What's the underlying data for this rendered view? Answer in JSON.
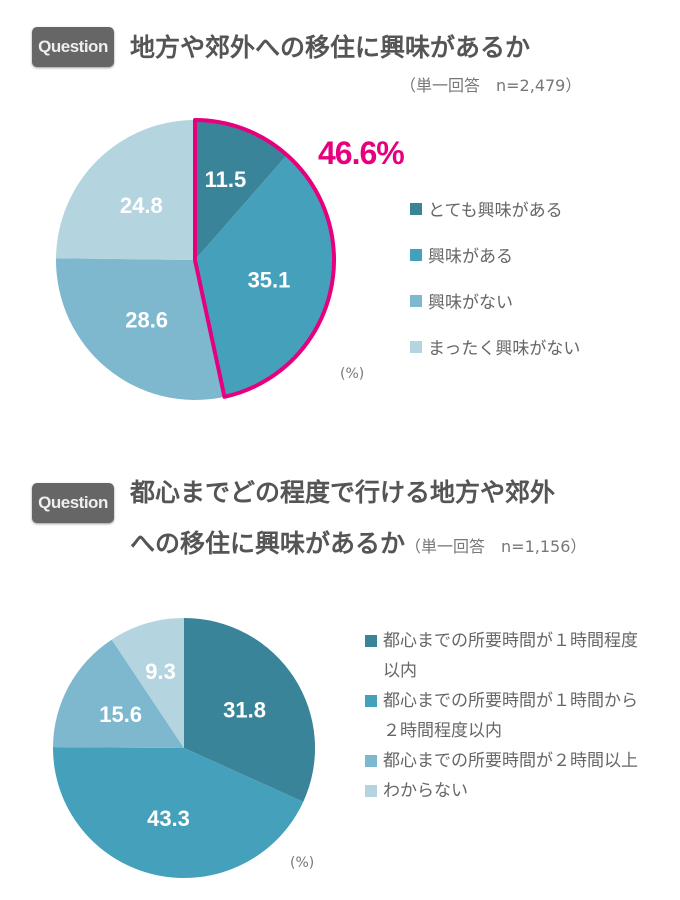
{
  "colors": {
    "c1": "#3a8499",
    "c2": "#45a0bb",
    "c3": "#7db8cf",
    "c4": "#b4d4e0",
    "highlight": "#e6007e"
  },
  "chart_data": [
    {
      "type": "pie",
      "badge": "Question",
      "title": "地方や郊外への移住に興味があるか",
      "note": "（単一回答　n=2,479）",
      "unit": "(%)",
      "highlight_label": "46.6%",
      "categories": [
        "とても興味がある",
        "興味がある",
        "興味がない",
        "まったく興味がない"
      ],
      "values": [
        11.5,
        35.1,
        28.6,
        24.8
      ],
      "value_labels": [
        "11.5",
        "35.1",
        "28.6",
        "24.8"
      ],
      "highlighted_slices": [
        0,
        1
      ],
      "legend_position": "right"
    },
    {
      "type": "pie",
      "badge": "Question",
      "title_line1": "都心までどの程度で行ける地方や郊外",
      "title_line2": "への移住に興味があるか",
      "note": "（単一回答　n=1,156）",
      "unit": "(%)",
      "categories": [
        "都心までの所要時間が１時間程度以内",
        "都心までの所要時間が１時間から２時間程度以内",
        "都心までの所要時間が２時間以上",
        "わからない"
      ],
      "values": [
        31.8,
        43.3,
        15.6,
        9.3
      ],
      "value_labels": [
        "31.8",
        "43.3",
        "15.6",
        "9.3"
      ],
      "legend_position": "right"
    }
  ]
}
